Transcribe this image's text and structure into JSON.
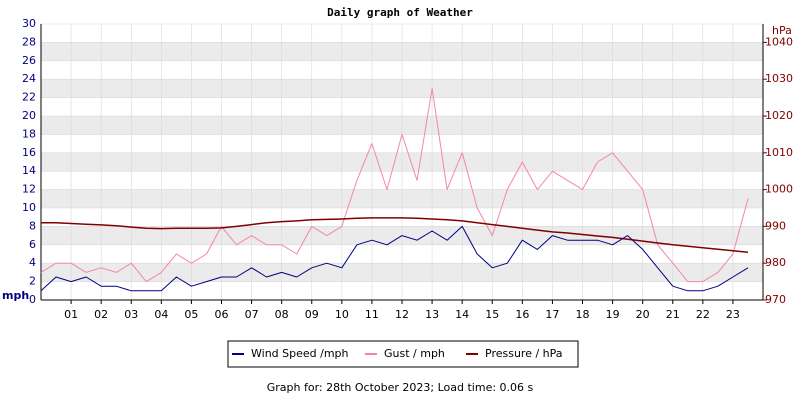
{
  "chart_data": {
    "type": "line",
    "title": "Daily graph of Weather",
    "y_label": "mph",
    "y2_label": "hPa",
    "x": [
      0,
      0.5,
      1,
      1.5,
      2,
      2.5,
      3,
      3.5,
      4,
      4.5,
      5,
      5.5,
      6,
      6.5,
      7,
      7.5,
      8,
      8.5,
      9,
      9.5,
      10,
      10.5,
      11,
      11.5,
      12,
      12.5,
      13,
      13.5,
      14,
      14.5,
      15,
      15.5,
      16,
      16.5,
      17,
      17.5,
      18,
      18.5,
      19,
      19.5,
      20,
      20.5,
      21,
      21.5,
      22,
      22.5,
      23,
      23.5
    ],
    "xlim": [
      0,
      24
    ],
    "xticks": [
      {
        "value": 1,
        "label": "01"
      },
      {
        "value": 2,
        "label": "02"
      },
      {
        "value": 3,
        "label": "03"
      },
      {
        "value": 4,
        "label": "04"
      },
      {
        "value": 5,
        "label": "05"
      },
      {
        "value": 6,
        "label": "06"
      },
      {
        "value": 7,
        "label": "07"
      },
      {
        "value": 8,
        "label": "08"
      },
      {
        "value": 9,
        "label": "09"
      },
      10,
      11,
      12,
      13,
      14,
      15,
      16,
      17,
      18,
      19,
      20,
      21,
      22,
      23
    ],
    "ylim": [
      0,
      30
    ],
    "yticks": [
      0,
      2,
      4,
      6,
      8,
      10,
      12,
      14,
      16,
      18,
      20,
      22,
      24,
      26,
      28,
      30
    ],
    "y2lim": [
      970,
      1045
    ],
    "y2ticks": [
      970,
      980,
      990,
      1000,
      1010,
      1020,
      1030,
      1040
    ],
    "grid": true,
    "series": [
      {
        "name": "Wind Speed /mph",
        "color": "#000080",
        "values": [
          1,
          2.5,
          2,
          2.5,
          1.5,
          1.5,
          1,
          1,
          1,
          2.5,
          1.5,
          2,
          2.5,
          2.5,
          3.5,
          2.5,
          3,
          2.5,
          3.5,
          4,
          3.5,
          6,
          6.5,
          6,
          7,
          6.5,
          7.5,
          6.5,
          8,
          5,
          3.5,
          4,
          6.5,
          5.5,
          7,
          6.5,
          6.5,
          6.5,
          6,
          7,
          5.5,
          3.5,
          1.5,
          1,
          1,
          1.5,
          2.5,
          3.5
        ]
      },
      {
        "name": "Gust / mph",
        "color": "#f585a8",
        "values": [
          3,
          4,
          4,
          3,
          3.5,
          3,
          4,
          2,
          3,
          5,
          4,
          5,
          8,
          6,
          7,
          6,
          6,
          5,
          8,
          7,
          8,
          13,
          17,
          12,
          18,
          13,
          23,
          12,
          16,
          10,
          7,
          12,
          15,
          12,
          14,
          13,
          12,
          15,
          16,
          14,
          12,
          6,
          4,
          2,
          2,
          3,
          5,
          11
        ]
      },
      {
        "name": "Pressure / hPa",
        "color": "#800000",
        "axis": "y2",
        "values": [
          991,
          991,
          990.8,
          990.6,
          990.4,
          990.2,
          989.8,
          989.5,
          989.4,
          989.5,
          989.5,
          989.5,
          989.6,
          990,
          990.5,
          991,
          991.3,
          991.5,
          991.8,
          991.9,
          992,
          992.2,
          992.3,
          992.3,
          992.3,
          992.2,
          992,
          991.8,
          991.5,
          991,
          990.5,
          990,
          989.5,
          989,
          988.5,
          988.2,
          987.8,
          987.4,
          987,
          986.5,
          986,
          985.5,
          985,
          984.6,
          984.2,
          983.8,
          983.4,
          983
        ]
      }
    ]
  },
  "footer": "Graph for: 28th October 2023; Load time: 0.06 s"
}
